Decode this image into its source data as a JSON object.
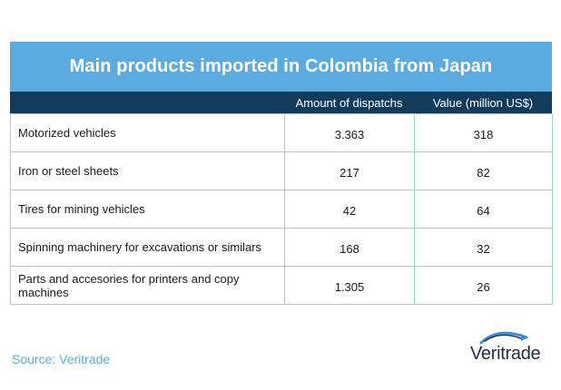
{
  "chart_data": {
    "type": "table",
    "title": "Main products imported in Colombia from Japan",
    "columns": [
      "",
      "Amount of dispatchs",
      "Value (million US$)"
    ],
    "rows": [
      {
        "product": "Motorized vehicles",
        "dispatchs": "3.363",
        "value": "318"
      },
      {
        "product": "Iron or steel  sheets",
        "dispatchs": "217",
        "value": "82"
      },
      {
        "product": "Tires for mining vehicles",
        "dispatchs": "42",
        "value": "64"
      },
      {
        "product": "Spinning machinery for excavations or similars",
        "dispatchs": "168",
        "value": "32"
      },
      {
        "product": " Parts and accesories for printers and copy machines",
        "dispatchs": "1.305",
        "value": "26"
      }
    ]
  },
  "source": "Source: Veritrade",
  "logo": {
    "text": "Veritrade"
  },
  "colors": {
    "title_bg": "#5aace0",
    "header_bg": "#123b5c",
    "border": "#9fcbe8",
    "source_text": "#5aace0"
  }
}
